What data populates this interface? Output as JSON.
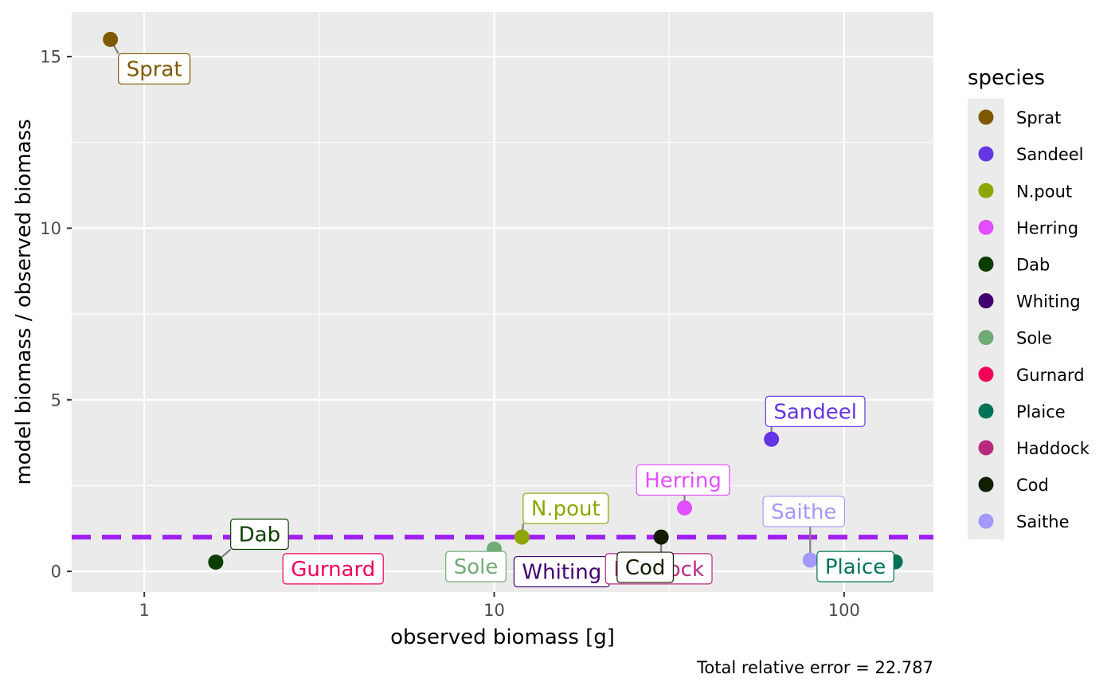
{
  "chart_data": {
    "type": "scatter",
    "xlabel": "observed biomass [g]",
    "ylabel": "model biomass / observed biomass",
    "x_scale": "log10",
    "xlim": [
      0.62,
      180
    ],
    "ylim": [
      -0.6,
      16.3
    ],
    "x_ticks": [
      1,
      10,
      100
    ],
    "x_tick_labels": [
      "1",
      "10",
      "100"
    ],
    "y_ticks": [
      0,
      5,
      10,
      15
    ],
    "y_tick_labels": [
      "0",
      "5",
      "10",
      "15"
    ],
    "grid": true,
    "reference_line": {
      "y": 1,
      "color": "#A020F0",
      "style": "dashed"
    },
    "legend": {
      "title": "species",
      "placement": "right"
    },
    "caption": "Total relative error = 22.787",
    "series": [
      {
        "name": "Sprat",
        "color": "#7F5900",
        "x": 0.8,
        "y": 15.5
      },
      {
        "name": "Sandeel",
        "color": "#6435E4",
        "x": 62,
        "y": 3.85
      },
      {
        "name": "N.pout",
        "color": "#8EA600",
        "x": 12,
        "y": 1.0
      },
      {
        "name": "Herring",
        "color": "#E14EFF",
        "x": 35,
        "y": 1.85
      },
      {
        "name": "Dab",
        "color": "#0B3D00",
        "x": 1.6,
        "y": 0.27
      },
      {
        "name": "Whiting",
        "color": "#40006E",
        "x": 12,
        "y": 0.13
      },
      {
        "name": "Sole",
        "color": "#70AB76",
        "x": 10,
        "y": 0.65
      },
      {
        "name": "Gurnard",
        "color": "#F10058",
        "x": 3.5,
        "y": 0.1
      },
      {
        "name": "Plaice",
        "color": "#007357",
        "x": 140,
        "y": 0.28
      },
      {
        "name": "Haddock",
        "color": "#B82A80",
        "x": 30,
        "y": 0.1
      },
      {
        "name": "Cod",
        "color": "#111F00",
        "x": 30,
        "y": 1.0
      },
      {
        "name": "Saithe",
        "color": "#A399FB",
        "x": 80,
        "y": 0.33
      }
    ]
  }
}
